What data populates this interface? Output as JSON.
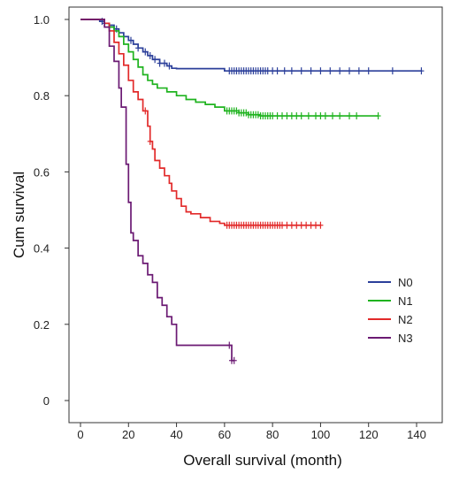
{
  "chart_data": {
    "type": "line",
    "subtype": "kaplan-meier",
    "title": "",
    "xlabel": "Overall survival (month)",
    "ylabel": "Cum survival",
    "xlim": [
      0,
      140
    ],
    "ylim": [
      0,
      1.0
    ],
    "xticks": [
      0,
      20,
      40,
      60,
      80,
      100,
      120,
      140
    ],
    "yticks": [
      0,
      0.2,
      0.4,
      0.6,
      0.8,
      1.0
    ],
    "xtick_labels": [
      "0",
      "20",
      "40",
      "60",
      "80",
      "100",
      "120",
      "140"
    ],
    "ytick_labels": [
      "0",
      "0.2",
      "0.4",
      "0.6",
      "0.8",
      "1.0"
    ],
    "grid": false,
    "legend": "right",
    "series": [
      {
        "name": "N0",
        "color": "#2b3f9a",
        "steps": [
          [
            0,
            1.0
          ],
          [
            8,
            0.995
          ],
          [
            10,
            0.99
          ],
          [
            12,
            0.985
          ],
          [
            14,
            0.975
          ],
          [
            16,
            0.965
          ],
          [
            18,
            0.955
          ],
          [
            20,
            0.945
          ],
          [
            22,
            0.935
          ],
          [
            24,
            0.925
          ],
          [
            26,
            0.915
          ],
          [
            28,
            0.905
          ],
          [
            30,
            0.895
          ],
          [
            33,
            0.885
          ],
          [
            36,
            0.878
          ],
          [
            38,
            0.872
          ],
          [
            40,
            0.871
          ],
          [
            60,
            0.865
          ],
          [
            142,
            0.865
          ]
        ],
        "censor_x": [
          9,
          10,
          15,
          18,
          21,
          24,
          27,
          29,
          31,
          33,
          35,
          37,
          62,
          63,
          64,
          65,
          66,
          67,
          68,
          69,
          70,
          71,
          72,
          73,
          74,
          75,
          76,
          77,
          78,
          80,
          82,
          85,
          88,
          92,
          96,
          100,
          104,
          108,
          112,
          116,
          120,
          130,
          142
        ]
      },
      {
        "name": "N1",
        "color": "#1fb31f",
        "steps": [
          [
            0,
            1.0
          ],
          [
            10,
            0.99
          ],
          [
            12,
            0.98
          ],
          [
            14,
            0.97
          ],
          [
            16,
            0.955
          ],
          [
            18,
            0.935
          ],
          [
            20,
            0.915
          ],
          [
            22,
            0.895
          ],
          [
            24,
            0.875
          ],
          [
            26,
            0.855
          ],
          [
            28,
            0.84
          ],
          [
            30,
            0.83
          ],
          [
            32,
            0.82
          ],
          [
            36,
            0.81
          ],
          [
            40,
            0.8
          ],
          [
            44,
            0.79
          ],
          [
            48,
            0.783
          ],
          [
            52,
            0.777
          ],
          [
            56,
            0.77
          ],
          [
            60,
            0.76
          ],
          [
            66,
            0.755
          ],
          [
            70,
            0.75
          ],
          [
            75,
            0.747
          ],
          [
            124,
            0.747
          ]
        ],
        "censor_x": [
          61,
          62,
          63,
          64,
          65,
          66,
          67,
          68,
          69,
          70,
          71,
          72,
          73,
          74,
          75,
          76,
          77,
          78,
          79,
          80,
          82,
          84,
          86,
          88,
          90,
          92,
          95,
          98,
          100,
          102,
          105,
          108,
          112,
          115,
          124
        ]
      },
      {
        "name": "N2",
        "color": "#e22a2a",
        "steps": [
          [
            0,
            1.0
          ],
          [
            10,
            0.99
          ],
          [
            12,
            0.97
          ],
          [
            14,
            0.94
          ],
          [
            16,
            0.91
          ],
          [
            18,
            0.88
          ],
          [
            20,
            0.84
          ],
          [
            22,
            0.81
          ],
          [
            24,
            0.79
          ],
          [
            26,
            0.76
          ],
          [
            28,
            0.72
          ],
          [
            29,
            0.68
          ],
          [
            30,
            0.66
          ],
          [
            31,
            0.63
          ],
          [
            33,
            0.61
          ],
          [
            35,
            0.59
          ],
          [
            37,
            0.57
          ],
          [
            38,
            0.55
          ],
          [
            40,
            0.53
          ],
          [
            42,
            0.51
          ],
          [
            44,
            0.495
          ],
          [
            46,
            0.49
          ],
          [
            50,
            0.48
          ],
          [
            54,
            0.47
          ],
          [
            58,
            0.465
          ],
          [
            60,
            0.46
          ],
          [
            100,
            0.46
          ]
        ],
        "censor_x": [
          27,
          29,
          61,
          62,
          63,
          64,
          65,
          66,
          67,
          68,
          69,
          70,
          71,
          72,
          73,
          74,
          75,
          76,
          77,
          78,
          79,
          80,
          81,
          82,
          83,
          84,
          86,
          88,
          90,
          92,
          94,
          96,
          98,
          100
        ]
      },
      {
        "name": "N3",
        "color": "#6b1a73",
        "steps": [
          [
            0,
            1.0
          ],
          [
            10,
            0.98
          ],
          [
            12,
            0.93
          ],
          [
            14,
            0.89
          ],
          [
            16,
            0.82
          ],
          [
            17,
            0.77
          ],
          [
            19,
            0.62
          ],
          [
            20,
            0.52
          ],
          [
            21,
            0.44
          ],
          [
            22,
            0.42
          ],
          [
            24,
            0.38
          ],
          [
            26,
            0.36
          ],
          [
            28,
            0.33
          ],
          [
            30,
            0.31
          ],
          [
            32,
            0.27
          ],
          [
            34,
            0.25
          ],
          [
            36,
            0.22
          ],
          [
            38,
            0.2
          ],
          [
            40,
            0.145
          ],
          [
            62,
            0.145
          ],
          [
            63,
            0.105
          ],
          [
            64,
            0.105
          ]
        ],
        "censor_x": [
          62,
          63,
          64
        ]
      }
    ]
  }
}
